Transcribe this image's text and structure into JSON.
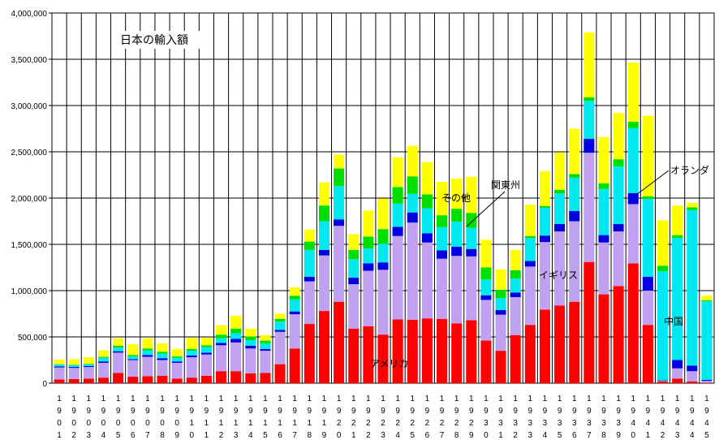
{
  "chart_data": {
    "type": "bar",
    "stacked": true,
    "title": "日本の輸入額",
    "xlabel": "",
    "ylabel": "",
    "ylim": [
      0,
      4000000
    ],
    "yticks": [
      0,
      500000,
      1000000,
      1500000,
      2000000,
      2500000,
      3000000,
      3500000,
      4000000
    ],
    "ytick_labels": [
      "0",
      "500,000",
      "1,000,000",
      "1,500,000",
      "2,000,000",
      "2,500,000",
      "3,000,000",
      "3,500,000",
      "4,000,000"
    ],
    "grid": true,
    "categories": [
      "1901",
      "1902",
      "1903",
      "1904",
      "1905",
      "1906",
      "1907",
      "1908",
      "1909",
      "1910",
      "1911",
      "1912",
      "1913",
      "1914",
      "1915",
      "1916",
      "1917",
      "1918",
      "1919",
      "1920",
      "1921",
      "1922",
      "1923",
      "1924",
      "1925",
      "1926",
      "1927",
      "1928",
      "1929",
      "1930",
      "1931",
      "1932",
      "1933",
      "1934",
      "1935",
      "1936",
      "1937",
      "1938",
      "1939",
      "1940",
      "1941",
      "1942",
      "1943",
      "1944",
      "1945"
    ],
    "series": [
      {
        "name": "アメリカ",
        "color": "#ff0000",
        "values": [
          40000,
          45000,
          50000,
          60000,
          110000,
          70000,
          75000,
          80000,
          50000,
          60000,
          80000,
          130000,
          130000,
          105000,
          110000,
          205000,
          375000,
          640000,
          780000,
          880000,
          590000,
          615000,
          525000,
          690000,
          685000,
          700000,
          695000,
          645000,
          680000,
          460000,
          350000,
          520000,
          630000,
          795000,
          840000,
          880000,
          1310000,
          960000,
          1050000,
          1295000,
          630000,
          20000,
          50000,
          20000,
          5000
        ]
      },
      {
        "name": "",
        "color": "#c0a0f0",
        "values": [
          130000,
          120000,
          125000,
          160000,
          220000,
          180000,
          210000,
          170000,
          170000,
          220000,
          230000,
          280000,
          310000,
          270000,
          240000,
          350000,
          370000,
          460000,
          600000,
          820000,
          480000,
          600000,
          700000,
          900000,
          1050000,
          820000,
          650000,
          730000,
          690000,
          440000,
          390000,
          410000,
          630000,
          730000,
          800000,
          870000,
          1180000,
          560000,
          590000,
          640000,
          370000,
          5000,
          110000,
          110000,
          20000
        ]
      },
      {
        "name": "",
        "color": "#0000e0",
        "values": [
          10000,
          10000,
          10000,
          15000,
          15000,
          10000,
          20000,
          20000,
          15000,
          20000,
          20000,
          25000,
          40000,
          30000,
          20000,
          20000,
          30000,
          50000,
          60000,
          70000,
          70000,
          80000,
          80000,
          100000,
          110000,
          100000,
          90000,
          100000,
          80000,
          50000,
          50000,
          50000,
          60000,
          70000,
          80000,
          110000,
          150000,
          80000,
          80000,
          120000,
          150000,
          5000,
          90000,
          60000,
          10000
        ]
      },
      {
        "name": "",
        "color": "#00e8f0",
        "values": [
          20000,
          20000,
          20000,
          40000,
          40000,
          30000,
          50000,
          50000,
          40000,
          50000,
          60000,
          50000,
          60000,
          60000,
          60000,
          90000,
          130000,
          290000,
          310000,
          360000,
          200000,
          160000,
          200000,
          250000,
          200000,
          270000,
          250000,
          270000,
          230000,
          170000,
          130000,
          150000,
          250000,
          300000,
          330000,
          360000,
          410000,
          500000,
          620000,
          700000,
          840000,
          1180000,
          1320000,
          1680000,
          850000
        ]
      },
      {
        "name": "",
        "color": "#00e000",
        "values": [
          5000,
          5000,
          5000,
          10000,
          20000,
          15000,
          20000,
          20000,
          15000,
          20000,
          20000,
          40000,
          50000,
          40000,
          30000,
          30000,
          40000,
          90000,
          170000,
          190000,
          100000,
          130000,
          160000,
          180000,
          190000,
          150000,
          130000,
          140000,
          160000,
          130000,
          90000,
          90000,
          20000,
          20000,
          40000,
          40000,
          40000,
          60000,
          80000,
          70000,
          30000,
          60000,
          30000,
          30000,
          10000
        ]
      },
      {
        "name": "",
        "color": "#ffff00",
        "values": [
          50000,
          60000,
          70000,
          70000,
          80000,
          115000,
          110000,
          90000,
          80000,
          120000,
          80000,
          100000,
          140000,
          85000,
          60000,
          55000,
          90000,
          130000,
          250000,
          150000,
          170000,
          280000,
          330000,
          320000,
          330000,
          350000,
          360000,
          325000,
          390000,
          300000,
          220000,
          220000,
          340000,
          375000,
          400000,
          490000,
          700000,
          500000,
          500000,
          640000,
          870000,
          490000,
          320000,
          50000,
          50000
        ]
      }
    ],
    "annotations": [
      "日本の輸入額",
      "アメリカ",
      "イギリス",
      "中国",
      "その他",
      "関東州",
      "オランダ"
    ]
  }
}
